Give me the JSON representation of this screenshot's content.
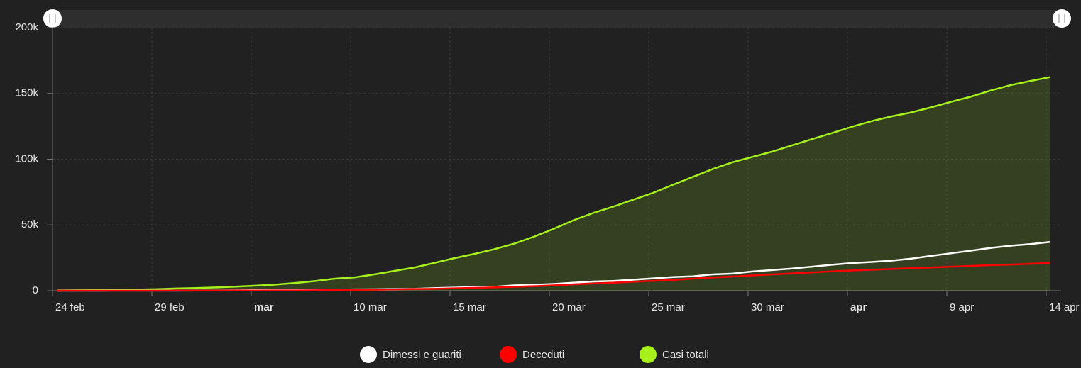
{
  "chart_data": {
    "type": "line",
    "categories": [
      "24 feb",
      null,
      null,
      null,
      null,
      "29 feb",
      null,
      null,
      null,
      null,
      "mar",
      null,
      null,
      null,
      null,
      "10 mar",
      null,
      null,
      null,
      null,
      "15 mar",
      null,
      null,
      null,
      null,
      "20 mar",
      null,
      null,
      null,
      null,
      "25 mar",
      null,
      null,
      null,
      null,
      "30 mar",
      null,
      null,
      null,
      null,
      "apr",
      null,
      null,
      null,
      null,
      "9 apr",
      null,
      null,
      null,
      null,
      "14 apr"
    ],
    "series": [
      {
        "name": "Dimessi e guariti",
        "color": "#ffffff",
        "values": [
          1,
          1,
          3,
          45,
          46,
          50,
          83,
          149,
          160,
          276,
          414,
          523,
          589,
          622,
          724,
          1004,
          1045,
          1258,
          1439,
          1966,
          2335,
          2749,
          2941,
          4025,
          4440,
          5129,
          6072,
          7024,
          7432,
          8326,
          9362,
          10361,
          10950,
          12384,
          13030,
          14620,
          15729,
          16847,
          18278,
          19758,
          20996,
          21815,
          22837,
          24392,
          26491,
          28470,
          30455,
          32534,
          34211,
          35435,
          37130
        ]
      },
      {
        "name": "Deceduti",
        "color": "#ff0000",
        "values": [
          7,
          10,
          12,
          17,
          21,
          29,
          34,
          52,
          79,
          107,
          148,
          197,
          233,
          366,
          463,
          631,
          827,
          1016,
          1266,
          1441,
          1809,
          2158,
          2503,
          2978,
          3405,
          4032,
          4825,
          5476,
          6077,
          6820,
          7503,
          8165,
          9134,
          10023,
          10779,
          11591,
          12428,
          13155,
          13915,
          14681,
          15362,
          15887,
          16523,
          17127,
          17669,
          18279,
          18849,
          19468,
          19899,
          20465,
          21067
        ]
      },
      {
        "name": "Casi totali",
        "color": "#a6f01c",
        "area": true,
        "values": [
          229,
          322,
          400,
          650,
          888,
          1128,
          1694,
          2036,
          2502,
          3089,
          3858,
          4636,
          5883,
          7375,
          9172,
          10149,
          12462,
          15113,
          17660,
          21157,
          24747,
          27980,
          31506,
          35713,
          41035,
          47021,
          53578,
          59138,
          63927,
          69176,
          74386,
          80539,
          86498,
          92472,
          97689,
          101739,
          105792,
          110574,
          115242,
          119827,
          124632,
          128948,
          132547,
          135586,
          139422,
          143626,
          147577,
          152271,
          156363,
          159516,
          162488
        ]
      }
    ],
    "ylim": [
      0,
      200000
    ],
    "yticks": [
      0,
      {
        "value": 50000,
        "label": "50k"
      },
      {
        "value": 100000,
        "label": "100k"
      },
      {
        "value": 150000,
        "label": "150k"
      },
      {
        "value": 200000,
        "label": "200k"
      }
    ],
    "grid": true
  }
}
